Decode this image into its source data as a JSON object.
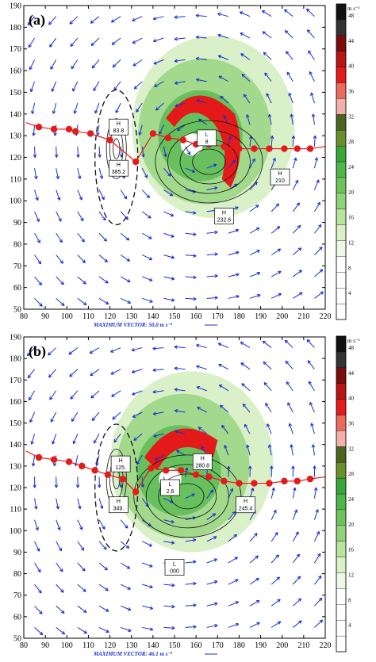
{
  "chart_data": [
    {
      "type": "heatmap",
      "panel_label": "(a)",
      "title": "",
      "xlabel": "",
      "ylabel": "",
      "xlim": [
        80,
        220
      ],
      "ylim": [
        50,
        190
      ],
      "x_ticks": [
        "80",
        "90",
        "100",
        "110",
        "120",
        "130",
        "140",
        "150",
        "160",
        "170",
        "180",
        "190",
        "200",
        "210",
        "220"
      ],
      "y_ticks": [
        "50",
        "60",
        "70",
        "80",
        "90",
        "100",
        "110",
        "120",
        "130",
        "140",
        "150",
        "160",
        "170",
        "180",
        "190"
      ],
      "max_vector_label": "MAXIMUM VECTOR:",
      "max_vector_value": "50.0 m s⁻¹",
      "colorbar_unit": "m s⁻¹",
      "colorbar_ticks": [
        "4",
        "8",
        "12",
        "16",
        "20",
        "24",
        "28",
        "32",
        "36",
        "40",
        "44",
        "48"
      ],
      "track_points": [
        [
          81,
          136
        ],
        [
          87,
          134
        ],
        [
          94,
          133
        ],
        [
          101,
          133
        ],
        [
          104,
          132
        ],
        [
          111,
          131
        ],
        [
          120,
          128
        ],
        [
          132,
          118
        ],
        [
          140,
          131
        ],
        [
          147,
          129
        ],
        [
          154,
          128
        ],
        [
          160,
          126
        ],
        [
          166,
          126
        ],
        [
          173,
          125
        ],
        [
          180,
          124
        ],
        [
          187,
          124
        ],
        [
          194,
          124
        ],
        [
          201,
          124
        ],
        [
          207,
          124
        ],
        [
          213,
          124
        ],
        [
          220,
          125
        ]
      ],
      "annotations": [
        {
          "type": "H",
          "value": "83.8",
          "x": 124,
          "y": 134
        },
        {
          "type": "H",
          "value": "385.2",
          "x": 124,
          "y": 115
        },
        {
          "type": "L",
          "value": "8",
          "x": 165,
          "y": 129
        },
        {
          "type": "H",
          "value": "210",
          "x": 199,
          "y": 111
        },
        {
          "type": "H",
          "value": "232.6",
          "x": 173,
          "y": 93
        }
      ]
    },
    {
      "type": "heatmap",
      "panel_label": "(b)",
      "title": "",
      "xlabel": "",
      "ylabel": "",
      "xlim": [
        80,
        220
      ],
      "ylim": [
        50,
        190
      ],
      "x_ticks": [
        "80",
        "90",
        "100",
        "110",
        "120",
        "130",
        "140",
        "150",
        "160",
        "170",
        "180",
        "190",
        "200",
        "210",
        "220"
      ],
      "y_ticks": [
        "50",
        "60",
        "70",
        "80",
        "90",
        "100",
        "110",
        "120",
        "130",
        "140",
        "150",
        "160",
        "170",
        "180",
        "190"
      ],
      "max_vector_label": "MAXIMUM VECTOR:",
      "max_vector_value": "46.1 m s⁻¹",
      "colorbar_unit": "m s⁻¹",
      "colorbar_ticks": [
        "4",
        "8",
        "12",
        "16",
        "20",
        "24",
        "28",
        "32",
        "36",
        "40",
        "44",
        "48"
      ],
      "track_points": [
        [
          81,
          137
        ],
        [
          87,
          134
        ],
        [
          94,
          133
        ],
        [
          101,
          132
        ],
        [
          107,
          130
        ],
        [
          113,
          128
        ],
        [
          119,
          126
        ],
        [
          126,
          124
        ],
        [
          132,
          118
        ],
        [
          139,
          129
        ],
        [
          146,
          128
        ],
        [
          153,
          128
        ],
        [
          160,
          126
        ],
        [
          166,
          125
        ],
        [
          173,
          123
        ],
        [
          180,
          122
        ],
        [
          187,
          122
        ],
        [
          194,
          122
        ],
        [
          201,
          123
        ],
        [
          207,
          123
        ],
        [
          213,
          124
        ],
        [
          220,
          125
        ]
      ],
      "annotations": [
        {
          "type": "H",
          "value": "125.",
          "x": 125,
          "y": 131
        },
        {
          "type": "H",
          "value": "349.",
          "x": 124,
          "y": 112
        },
        {
          "type": "L",
          "value": "2.6",
          "x": 148,
          "y": 120
        },
        {
          "type": "H",
          "value": "280.8",
          "x": 163,
          "y": 132
        },
        {
          "type": "H",
          "value": "245.4",
          "x": 183,
          "y": 112
        },
        {
          "type": "L",
          "value": "000",
          "x": 150,
          "y": 83
        }
      ]
    }
  ],
  "colors": {
    "vector": "#1a2fd0",
    "track": "#e31b1b",
    "shade_light": "#d9f0c8",
    "shade_mid": "#8fd27a",
    "shade_dark": "#4fb548",
    "shade_red": "#e41a1a"
  }
}
